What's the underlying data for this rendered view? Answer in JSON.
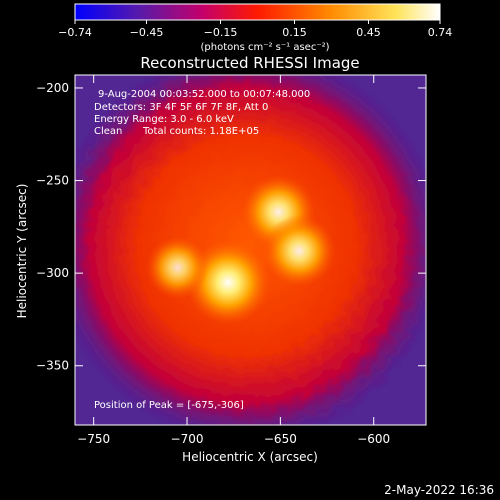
{
  "chart_data": {
    "type": "heatmap",
    "title": "Reconstructed RHESSI Image",
    "xlabel": "Heliocentric X (arcsec)",
    "ylabel": "Heliocentric Y (arcsec)",
    "xlim": [
      -760,
      -572
    ],
    "ylim": [
      -382,
      -193
    ],
    "xticks": [
      -750,
      -700,
      -650,
      -600
    ],
    "yticks": [
      -200,
      -250,
      -300,
      -350
    ],
    "annotations": {
      "time": "9-Aug-2004 00:03:52.000 to 00:07:48.000",
      "detectors": "Detectors: 3F 4F 5F 6F 7F 8F, Att 0",
      "energy": "Energy Range: 3.0 - 6.0 keV",
      "method": "Clean",
      "counts": "Total counts: 1.18E+05",
      "peak": "Position of Peak = [-675,-306]"
    },
    "colorbar": {
      "ticks": [
        "-0.74",
        "-0.45",
        "-0.15",
        "0.15",
        "0.45",
        "0.74"
      ],
      "range": [
        -0.74,
        0.74
      ],
      "label": "(photons cm⁻² s⁻¹ asec⁻²)",
      "colormap": [
        "#0000ff",
        "#7a1aa0",
        "#d4002a",
        "#ff6a00",
        "#ffd84a",
        "#ffffff"
      ]
    },
    "sources": [
      {
        "x": -678,
        "y": -305,
        "intensity": 0.74
      },
      {
        "x": -651,
        "y": -267,
        "intensity": 0.6
      },
      {
        "x": -640,
        "y": -288,
        "intensity": 0.58
      },
      {
        "x": -705,
        "y": -297,
        "intensity": 0.45
      }
    ],
    "background": {
      "center_x": -668,
      "center_y": -285,
      "radius": 68
    }
  },
  "footer": {
    "date": "2-May-2022 16:36"
  }
}
